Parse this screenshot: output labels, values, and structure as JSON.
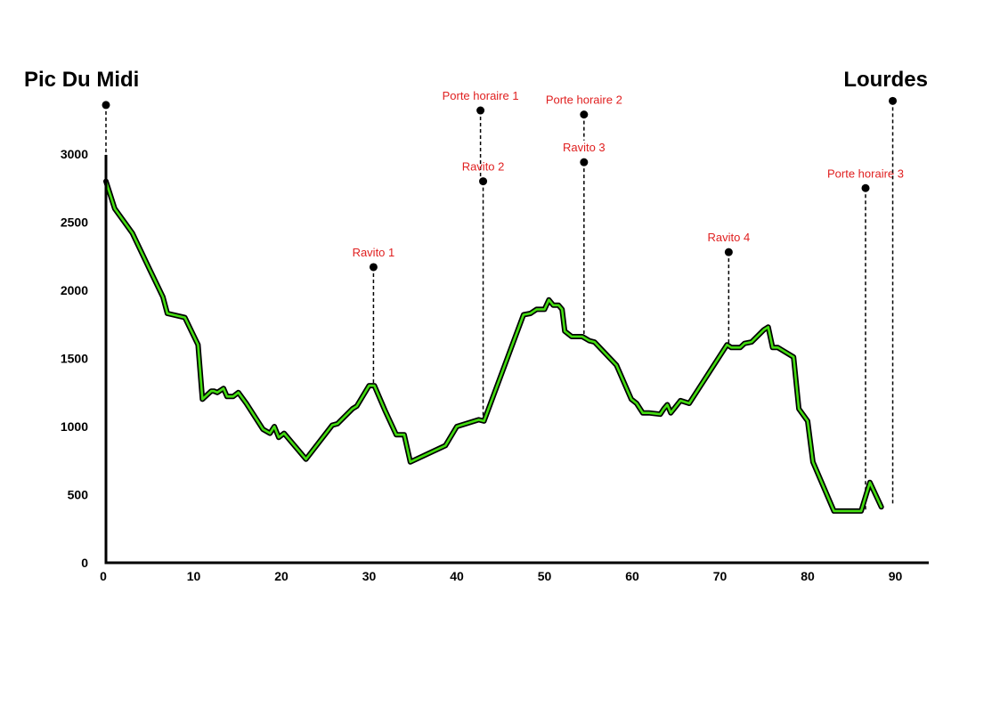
{
  "chart_data": {
    "type": "line",
    "title": "",
    "xlabel": "",
    "ylabel": "",
    "xlim": [
      0,
      93
    ],
    "ylim": [
      0,
      3000
    ],
    "xticks": [
      0,
      10,
      20,
      30,
      40,
      50,
      60,
      70,
      80,
      90
    ],
    "yticks": [
      0,
      500,
      1000,
      1500,
      2000,
      2500,
      3000
    ],
    "grid": false,
    "start_label": "Pic Du Midi",
    "end_label": "Lourdes",
    "colors": {
      "line": "#44dd11",
      "outline": "#000000",
      "marker": "#000000",
      "marker_label": "#e02020"
    },
    "series": [
      {
        "x": [
          0,
          1,
          3,
          5,
          6.5,
          7,
          9,
          10.5,
          11,
          12,
          12.3,
          12.7,
          13.4,
          13.8,
          14.5,
          15.1,
          16,
          17.9,
          18.7,
          19.2,
          19.7,
          20.3,
          22.8,
          25.8,
          26.4,
          28.1,
          28.6,
          30,
          30.6,
          31.8,
          33.1,
          34,
          34.7,
          38.7,
          40,
          42.5,
          43.1,
          47.6,
          48.4,
          49.1,
          49.5,
          50,
          50.5,
          51,
          51.6,
          52,
          52.3,
          53.1,
          54.3,
          55.1,
          55.7,
          58.2,
          59.9,
          60.5,
          61.2,
          61.9,
          63.2,
          63.6,
          64,
          64.4,
          65,
          65.5,
          66.5,
          70.8,
          71.3,
          72.3,
          72.8,
          73.6,
          75,
          75.5,
          76,
          76.6,
          78.4,
          79,
          80,
          80.6,
          83,
          86.1,
          87.1,
          88.4
        ],
        "y": [
          2800,
          2600,
          2420,
          2150,
          1950,
          1830,
          1800,
          1600,
          1200,
          1260,
          1260,
          1250,
          1280,
          1220,
          1220,
          1250,
          1170,
          980,
          950,
          1000,
          920,
          950,
          760,
          1010,
          1020,
          1130,
          1150,
          1300,
          1300,
          1120,
          940,
          940,
          740,
          860,
          1000,
          1050,
          1040,
          1820,
          1830,
          1860,
          1860,
          1860,
          1930,
          1890,
          1890,
          1860,
          1700,
          1660,
          1660,
          1630,
          1620,
          1450,
          1200,
          1170,
          1100,
          1100,
          1090,
          1130,
          1160,
          1100,
          1150,
          1190,
          1170,
          1600,
          1580,
          1580,
          1610,
          1620,
          1710,
          1730,
          1580,
          1580,
          1510,
          1130,
          1040,
          740,
          380,
          380,
          590,
          410
        ]
      }
    ],
    "markers": [
      {
        "label": "Ravito 1",
        "x": 30.5,
        "y_top": 2170,
        "y_bottom": 1300
      },
      {
        "label": "Porte horaire 1",
        "x": 42.7,
        "y_top": 3320,
        "y_bottom": 2800
      },
      {
        "label": "Ravito 2",
        "x": 43.0,
        "y_top": 2800,
        "y_bottom": 1050
      },
      {
        "label": "Porte horaire 2",
        "x": 54.5,
        "y_top": 3290,
        "y_bottom": 3100
      },
      {
        "label": "Ravito 3",
        "x": 54.5,
        "y_top": 2940,
        "y_bottom": 1660
      },
      {
        "label": "Ravito 4",
        "x": 71.0,
        "y_top": 2280,
        "y_bottom": 1600
      },
      {
        "label": "Porte horaire 3",
        "x": 86.6,
        "y_top": 2750,
        "y_bottom": 390
      },
      {
        "label": "",
        "x": 0,
        "y_top": 3360,
        "y_bottom": 2970
      },
      {
        "label": "",
        "x": 89.7,
        "y_top": 3390,
        "y_bottom": 420
      }
    ]
  }
}
